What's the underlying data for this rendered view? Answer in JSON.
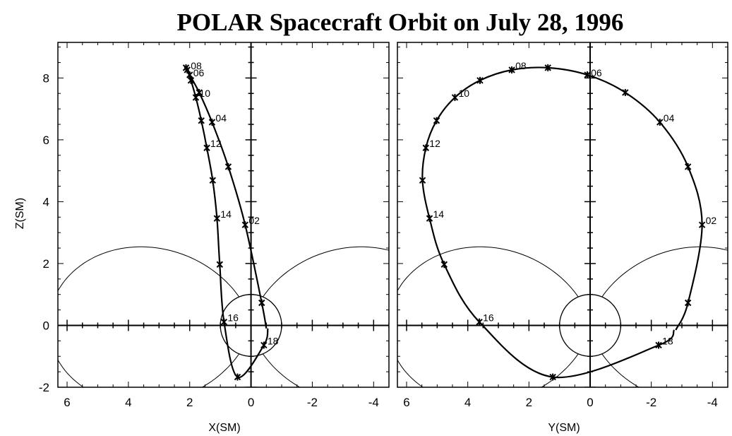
{
  "chart_data": [
    {
      "type": "line",
      "title": "POLAR Spacecraft Orbit on July 28, 1996",
      "xlabel": "X(SM)",
      "ylabel": "Z(SM)",
      "xlim": [
        6.3,
        -4.5
      ],
      "ylim": [
        -2.0,
        9.15
      ],
      "xticks": [
        "6",
        "4",
        "2",
        "0",
        "-2",
        "-4"
      ],
      "yticks": [
        "8",
        "6",
        "4",
        "2",
        "0",
        "-2"
      ],
      "dipole_L": 6.6,
      "earth_radius": 1,
      "path_start": [
        -0.5,
        -0.1
      ],
      "path_end": [
        -0.55,
        -0.1
      ],
      "points": [
        {
          "hour": 1,
          "x": -0.35,
          "z": 0.73
        },
        {
          "hour": 2,
          "x": 0.19,
          "z": 3.25,
          "label": "02"
        },
        {
          "hour": 3,
          "x": 0.74,
          "z": 5.13
        },
        {
          "hour": 4,
          "x": 1.27,
          "z": 6.57,
          "label": "04"
        },
        {
          "hour": 5,
          "x": 1.69,
          "z": 7.53
        },
        {
          "hour": 6,
          "x": 2.0,
          "z": 8.1,
          "label": "06"
        },
        {
          "hour": 7,
          "x": 2.12,
          "z": 8.33
        },
        {
          "hour": 8,
          "x": 2.08,
          "z": 8.26,
          "label": "08"
        },
        {
          "hour": 9,
          "x": 1.96,
          "z": 7.92
        },
        {
          "hour": 10,
          "x": 1.8,
          "z": 7.37,
          "label": "10"
        },
        {
          "hour": 11,
          "x": 1.62,
          "z": 6.62
        },
        {
          "hour": 12,
          "x": 1.44,
          "z": 5.74,
          "label": "12"
        },
        {
          "hour": 13,
          "x": 1.25,
          "z": 4.69
        },
        {
          "hour": 14,
          "x": 1.11,
          "z": 3.46,
          "label": "14"
        },
        {
          "hour": 15,
          "x": 1.02,
          "z": 1.97
        },
        {
          "hour": 16,
          "x": 0.88,
          "z": 0.11,
          "label": "16"
        },
        {
          "hour": 17,
          "x": 0.44,
          "z": -1.67
        },
        {
          "hour": 18,
          "x": -0.42,
          "z": -0.64,
          "label": "18"
        }
      ]
    },
    {
      "type": "line",
      "xlabel": "Y(SM)",
      "ylabel": "Z(SM)",
      "xlim": [
        6.3,
        -4.5
      ],
      "ylim": [
        -2.0,
        9.15
      ],
      "xticks": [
        "6",
        "4",
        "2",
        "0",
        "-2",
        "-4"
      ],
      "dipole_L": 6.6,
      "earth_radius": 1,
      "path_start": [
        -2.8,
        -0.15
      ],
      "path_end": [
        -2.75,
        -0.15
      ],
      "points": [
        {
          "hour": 1,
          "x": -3.2,
          "z": 0.73
        },
        {
          "hour": 2,
          "x": -3.66,
          "z": 3.25,
          "label": "02"
        },
        {
          "hour": 3,
          "x": -3.2,
          "z": 5.13
        },
        {
          "hour": 4,
          "x": -2.28,
          "z": 6.57,
          "label": "04"
        },
        {
          "hour": 5,
          "x": -1.15,
          "z": 7.53
        },
        {
          "hour": 6,
          "x": 0.09,
          "z": 8.1,
          "label": "06"
        },
        {
          "hour": 7,
          "x": 1.38,
          "z": 8.33
        },
        {
          "hour": 8,
          "x": 2.56,
          "z": 8.26,
          "label": "08"
        },
        {
          "hour": 9,
          "x": 3.6,
          "z": 7.92
        },
        {
          "hour": 10,
          "x": 4.42,
          "z": 7.37,
          "label": "10"
        },
        {
          "hour": 11,
          "x": 5.02,
          "z": 6.62
        },
        {
          "hour": 12,
          "x": 5.37,
          "z": 5.74,
          "label": "12"
        },
        {
          "hour": 13,
          "x": 5.48,
          "z": 4.69
        },
        {
          "hour": 14,
          "x": 5.25,
          "z": 3.46,
          "label": "14"
        },
        {
          "hour": 15,
          "x": 4.77,
          "z": 1.97
        },
        {
          "hour": 16,
          "x": 3.62,
          "z": 0.11,
          "label": "16"
        },
        {
          "hour": 17,
          "x": 1.22,
          "z": -1.67
        },
        {
          "hour": 18,
          "x": -2.24,
          "z": -0.64,
          "label": "18"
        }
      ]
    }
  ]
}
